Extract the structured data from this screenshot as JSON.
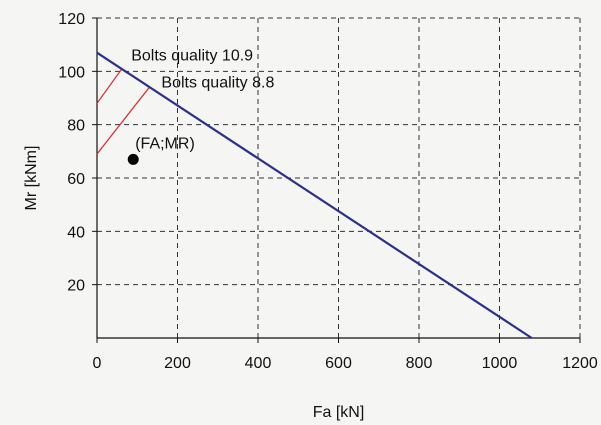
{
  "chart_data": {
    "type": "line",
    "title": "",
    "xlabel": "Fa [kN]",
    "ylabel": "Mr [kNm]",
    "xlim": [
      0,
      1200
    ],
    "ylim": [
      0,
      120
    ],
    "x_ticks": [
      0,
      200,
      400,
      600,
      800,
      1000,
      1200
    ],
    "y_ticks": [
      20,
      40,
      60,
      80,
      100,
      120
    ],
    "grid": true,
    "colors": {
      "line": "#2b2f8f",
      "limit": "#d8262b",
      "grid": "#333333",
      "point": "#000000"
    },
    "series": [
      {
        "values_xy": [
          [
            0,
            107
          ],
          [
            1080,
            0
          ]
        ]
      }
    ],
    "annotations": [
      {
        "text": "Bolts quality 10.9",
        "x": 85,
        "y": 104,
        "line_xy": [
          [
            0,
            88
          ],
          [
            62,
            101
          ]
        ]
      },
      {
        "text": "Bolts quality 8.8",
        "x": 160,
        "y": 94,
        "line_xy": [
          [
            0,
            69
          ],
          [
            130,
            94
          ]
        ]
      }
    ],
    "point": {
      "label": "(FA;MR)",
      "x": 90,
      "y": 67
    }
  }
}
